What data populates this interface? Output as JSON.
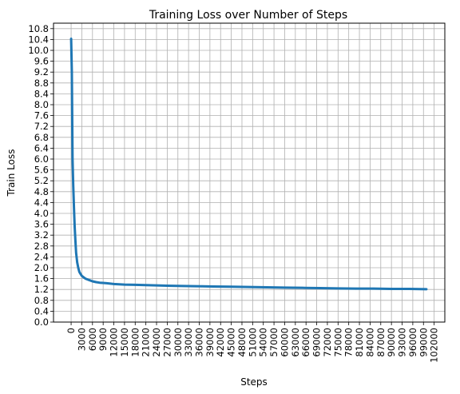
{
  "chart_data": {
    "type": "line",
    "title": "Training Loss over Number of Steps",
    "xlabel": "Steps",
    "ylabel": "Train Loss",
    "xlim": [
      -4950,
      105000
    ],
    "ylim": [
      0.0,
      11.0
    ],
    "grid": true,
    "x_ticks": [
      0,
      3000,
      6000,
      9000,
      12000,
      15000,
      18000,
      21000,
      24000,
      27000,
      30000,
      33000,
      36000,
      39000,
      42000,
      45000,
      48000,
      51000,
      54000,
      57000,
      60000,
      63000,
      66000,
      69000,
      72000,
      75000,
      78000,
      81000,
      84000,
      87000,
      90000,
      93000,
      96000,
      99000,
      102000
    ],
    "x_tick_labels": [
      "0",
      "3000",
      "6000",
      "9000",
      "12000",
      "15000",
      "18000",
      "21000",
      "24000",
      "27000",
      "30000",
      "33000",
      "36000",
      "39000",
      "42000",
      "45000",
      "48000",
      "51000",
      "54000",
      "57000",
      "60000",
      "63000",
      "66000",
      "69000",
      "72000",
      "75000",
      "78000",
      "81000",
      "84000",
      "87000",
      "90000",
      "93000",
      "96000",
      "99000",
      "102000"
    ],
    "y_ticks": [
      0.0,
      0.4,
      0.8,
      1.2,
      1.6,
      2.0,
      2.4,
      2.8,
      3.2,
      3.6,
      4.0,
      4.4,
      4.8,
      5.2,
      5.6,
      6.0,
      6.4,
      6.8,
      7.2,
      7.6,
      8.0,
      8.4,
      8.8,
      9.2,
      9.6,
      10.0,
      10.4,
      10.8
    ],
    "y_tick_labels": [
      "0.0",
      "0.4",
      "0.8",
      "1.2",
      "1.6",
      "2.0",
      "2.4",
      "2.8",
      "3.2",
      "3.6",
      "4.0",
      "4.4",
      "4.8",
      "5.2",
      "5.6",
      "6.0",
      "6.4",
      "6.8",
      "7.2",
      "7.6",
      "8.0",
      "8.4",
      "8.8",
      "9.2",
      "9.6",
      "10.0",
      "10.4",
      "10.8"
    ],
    "series": [
      {
        "color": "#1f77b4",
        "x": [
          0,
          200,
          400,
          600,
          800,
          1000,
          1200,
          1400,
          1700,
          2000,
          2300,
          2600,
          3000,
          3500,
          4000,
          5000,
          6000,
          7000,
          8000,
          10000,
          12000,
          15000,
          18000,
          21000,
          24000,
          27000,
          30000,
          35000,
          40000,
          45000,
          50000,
          55000,
          60000,
          65000,
          70000,
          75000,
          80000,
          85000,
          90000,
          95000,
          100000
        ],
        "y": [
          10.45,
          9.2,
          6.0,
          5.0,
          4.2,
          3.5,
          3.0,
          2.55,
          2.2,
          2.0,
          1.85,
          1.78,
          1.7,
          1.65,
          1.6,
          1.55,
          1.5,
          1.47,
          1.45,
          1.43,
          1.4,
          1.38,
          1.37,
          1.36,
          1.35,
          1.34,
          1.33,
          1.32,
          1.31,
          1.3,
          1.29,
          1.28,
          1.27,
          1.26,
          1.25,
          1.24,
          1.23,
          1.23,
          1.22,
          1.22,
          1.21
        ]
      }
    ]
  }
}
